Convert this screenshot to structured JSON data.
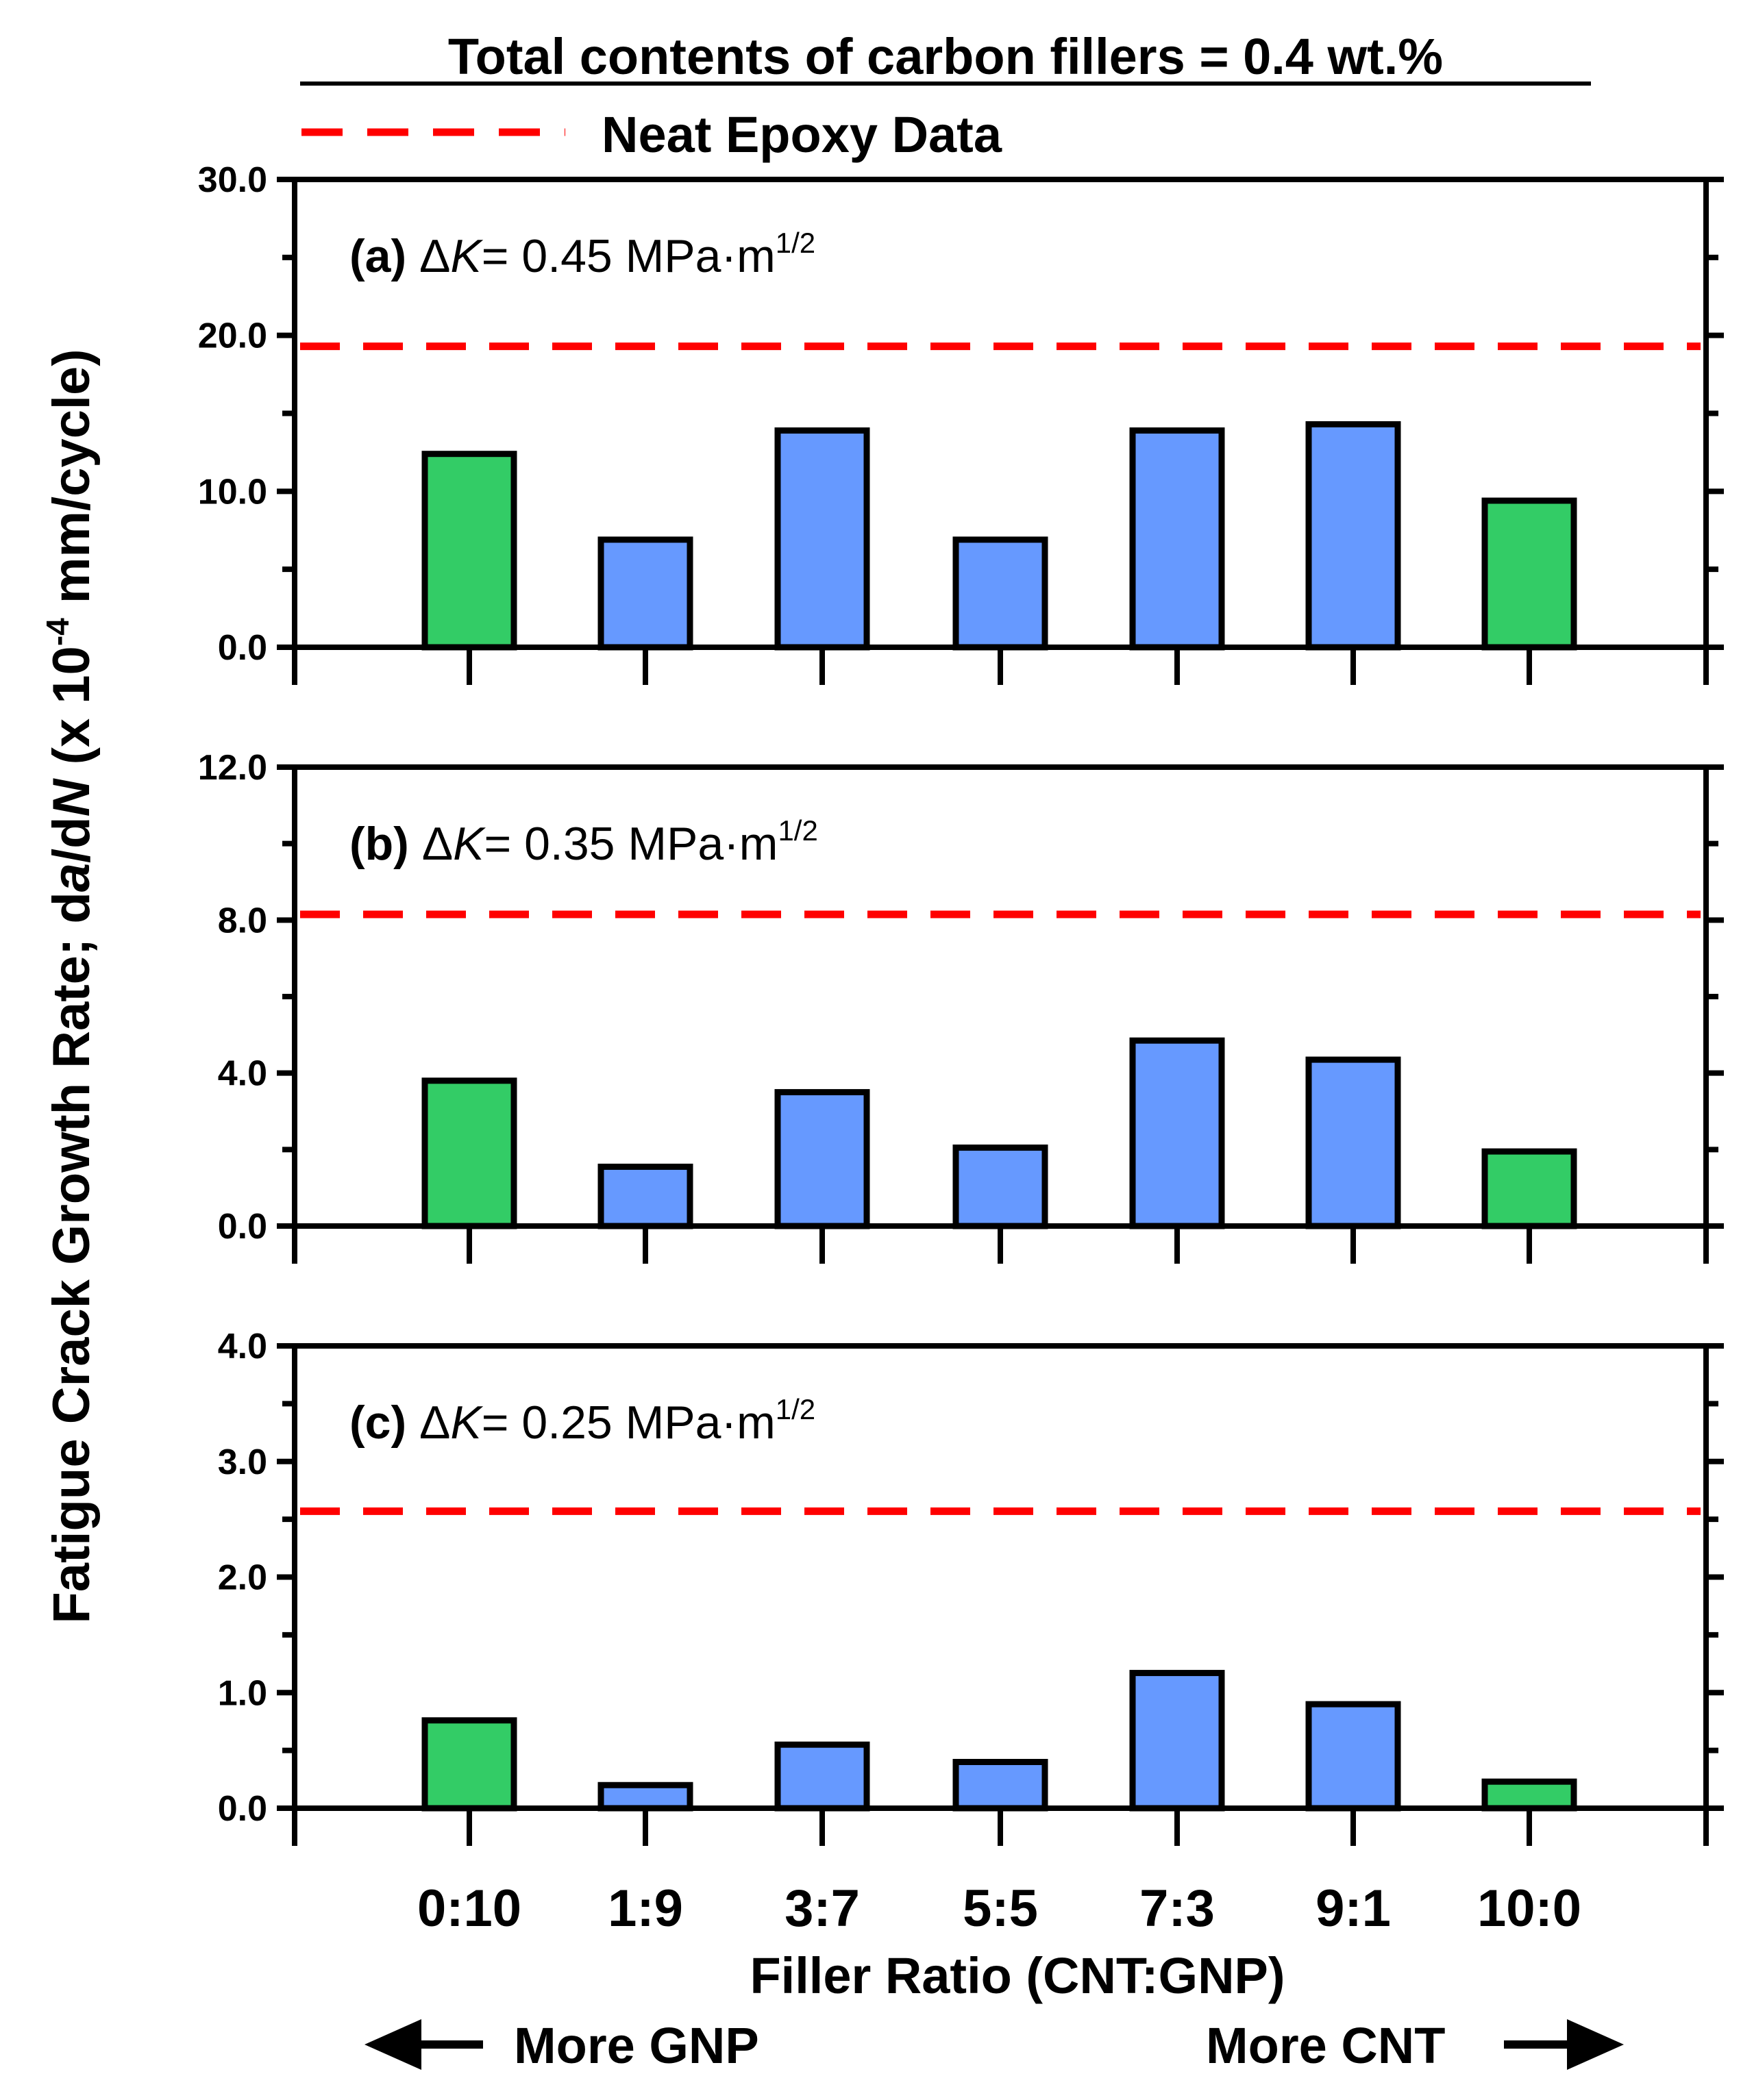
{
  "figure": {
    "title": "Total contents of carbon fillers = 0.4 wt.%",
    "legend_label": "Neat Epoxy Data",
    "xlabel": "Filler Ratio (CNT:GNP)",
    "ylabel_prefix": "Fatigue Crack Growth Rate; d",
    "ylabel_a": "a",
    "ylabel_mid": "/d",
    "ylabel_N": "N",
    "ylabel_unit_pre": " (x 10",
    "ylabel_exp": "-4",
    "ylabel_unit_post": " mm/cycle)",
    "arrow_left_label": "More GNP",
    "arrow_right_label": "More CNT"
  },
  "colors": {
    "green": "#33cc66",
    "blue": "#6699ff",
    "neat_line": "#ff0000",
    "axis": "#000000"
  },
  "chart_data": [
    {
      "type": "bar",
      "panel": "(a)",
      "delta": "Δ",
      "K": "K",
      "dk_value": "= 0.45 MPa·m",
      "dk_exp": "1/2",
      "categories": [
        "0:10",
        "1:9",
        "3:7",
        "5:5",
        "7:3",
        "9:1",
        "10:0"
      ],
      "values": [
        12.4,
        6.9,
        13.9,
        6.9,
        13.9,
        14.3,
        9.4
      ],
      "bar_colors": [
        "green",
        "blue",
        "blue",
        "blue",
        "blue",
        "blue",
        "green"
      ],
      "neat_epoxy": 19.3,
      "ylim": [
        0,
        30
      ],
      "yticks": [
        0,
        10,
        20,
        30
      ],
      "ytick_labels": [
        "0.0",
        "10.0",
        "20.0",
        "30.0"
      ],
      "minor_step": 5
    },
    {
      "type": "bar",
      "panel": "(b)",
      "delta": "Δ",
      "K": "K",
      "dk_value": "= 0.35 MPa·m",
      "dk_exp": "1/2",
      "categories": [
        "0:10",
        "1:9",
        "3:7",
        "5:5",
        "7:3",
        "9:1",
        "10:0"
      ],
      "values": [
        3.8,
        1.55,
        3.5,
        2.05,
        4.85,
        4.35,
        1.95
      ],
      "bar_colors": [
        "green",
        "blue",
        "blue",
        "blue",
        "blue",
        "blue",
        "green"
      ],
      "neat_epoxy": 8.15,
      "ylim": [
        0,
        12
      ],
      "yticks": [
        0,
        4,
        8,
        12
      ],
      "ytick_labels": [
        "0.0",
        "4.0",
        "8.0",
        "12.0"
      ],
      "minor_step": 2
    },
    {
      "type": "bar",
      "panel": "(c)",
      "delta": "Δ",
      "K": "K",
      "dk_value": "= 0.25 MPa·m",
      "dk_exp": "1/2",
      "categories": [
        "0:10",
        "1:9",
        "3:7",
        "5:5",
        "7:3",
        "9:1",
        "10:0"
      ],
      "values": [
        0.76,
        0.2,
        0.55,
        0.4,
        1.17,
        0.9,
        0.23
      ],
      "bar_colors": [
        "green",
        "blue",
        "blue",
        "blue",
        "blue",
        "blue",
        "green"
      ],
      "neat_epoxy": 2.57,
      "ylim": [
        0,
        4
      ],
      "yticks": [
        0,
        1,
        2,
        3,
        4
      ],
      "ytick_labels": [
        "0.0",
        "1.0",
        "2.0",
        "3.0",
        "4.0"
      ],
      "minor_step": 0.5
    }
  ]
}
